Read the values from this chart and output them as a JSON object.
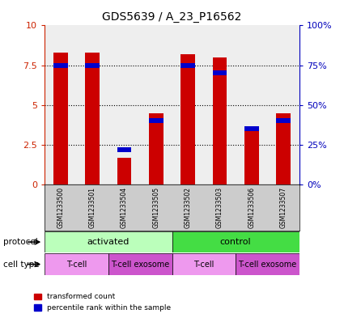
{
  "title": "GDS5639 / A_23_P16562",
  "samples": [
    "GSM1233500",
    "GSM1233501",
    "GSM1233504",
    "GSM1233505",
    "GSM1233502",
    "GSM1233503",
    "GSM1233506",
    "GSM1233507"
  ],
  "red_values": [
    8.3,
    8.3,
    1.7,
    4.5,
    8.2,
    8.0,
    3.4,
    4.5
  ],
  "blue_values_scaled": [
    0.75,
    0.75,
    0.22,
    0.4,
    0.75,
    0.7,
    0.35,
    0.4
  ],
  "yticks_left": [
    0,
    2.5,
    5,
    7.5,
    10
  ],
  "ytick_labels_left": [
    "0",
    "2.5",
    "5",
    "7.5",
    "10"
  ],
  "ytick_labels_right": [
    "0%",
    "25%",
    "50%",
    "75%",
    "100%"
  ],
  "protocol_groups": [
    {
      "label": "activated",
      "start": 0,
      "end": 4,
      "color": "#bbffbb"
    },
    {
      "label": "control",
      "start": 4,
      "end": 8,
      "color": "#44dd44"
    }
  ],
  "cell_type_groups": [
    {
      "label": "T-cell",
      "start": 0,
      "end": 2,
      "color": "#ee99ee"
    },
    {
      "label": "T-cell exosome",
      "start": 2,
      "end": 4,
      "color": "#cc55cc"
    },
    {
      "label": "T-cell",
      "start": 4,
      "end": 6,
      "color": "#ee99ee"
    },
    {
      "label": "T-cell exosome",
      "start": 6,
      "end": 8,
      "color": "#cc55cc"
    }
  ],
  "bar_color_red": "#cc0000",
  "bar_color_blue": "#0000cc",
  "bar_width": 0.45,
  "left_axis_color": "#cc2200",
  "right_axis_color": "#0000bb",
  "background_plot": "#eeeeee",
  "background_annotation": "#cccccc"
}
